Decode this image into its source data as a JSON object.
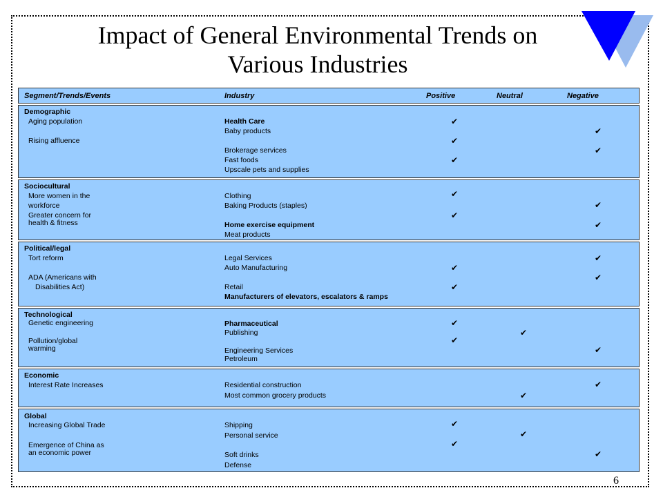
{
  "slide": {
    "title_line1": "Impact of General Environmental Trends on",
    "title_line2": "Various Industries",
    "page_number": "6",
    "accent_colors": {
      "table_bg": "#99ccff",
      "logo_dark": "#0000ff",
      "logo_light": "#99bbee"
    }
  },
  "header": {
    "segment": "Segment/Trends/Events",
    "industry": "Industry",
    "positive": "Positive",
    "neutral": "Neutral",
    "negative": "Negative"
  },
  "check_symbol": "✔",
  "sections": {
    "demographic": {
      "title": "Demographic",
      "trend1": "Aging population",
      "trend2": "Rising affluence",
      "ind1": "Health Care",
      "ind2": "Baby products",
      "ind3": "Brokerage services",
      "ind4": "Fast foods",
      "ind5": "Upscale pets and supplies"
    },
    "sociocultural": {
      "title": "Sociocultural",
      "trend1a": "More women in the",
      "trend1b": "workforce",
      "trend2a": "Greater concern for",
      "trend2b": "health & fitness",
      "ind1": "Clothing",
      "ind2": "Baking Products (staples)",
      "ind3": "Home exercise equipment",
      "ind4": "Meat products"
    },
    "political": {
      "title": "Political/legal",
      "trend1": "Tort reform",
      "trend2a": "ADA (Americans with",
      "trend2b": "Disabilities Act)",
      "ind1": "Legal Services",
      "ind2": "Auto Manufacturing",
      "ind3": "Retail",
      "ind4": "Manufacturers of elevators, escalators & ramps"
    },
    "technological": {
      "title": "Technological",
      "trend1": "Genetic engineering",
      "trend2a": "Pollution/global",
      "trend2b": "warming",
      "ind1": "Pharmaceutical",
      "ind2": "Publishing",
      "ind3": "Engineering Services",
      "ind4": "Petroleum"
    },
    "economic": {
      "title": "Economic",
      "trend1": "Interest Rate Increases",
      "ind1": "Residential construction",
      "ind2": "Most common grocery products"
    },
    "global": {
      "title": "Global",
      "trend1": "Increasing Global Trade",
      "trend2a": "Emergence of China as",
      "trend2b": "an economic power",
      "ind1": "Shipping",
      "ind2": "Personal service",
      "ind3": "Soft drinks",
      "ind4": "Defense"
    }
  }
}
